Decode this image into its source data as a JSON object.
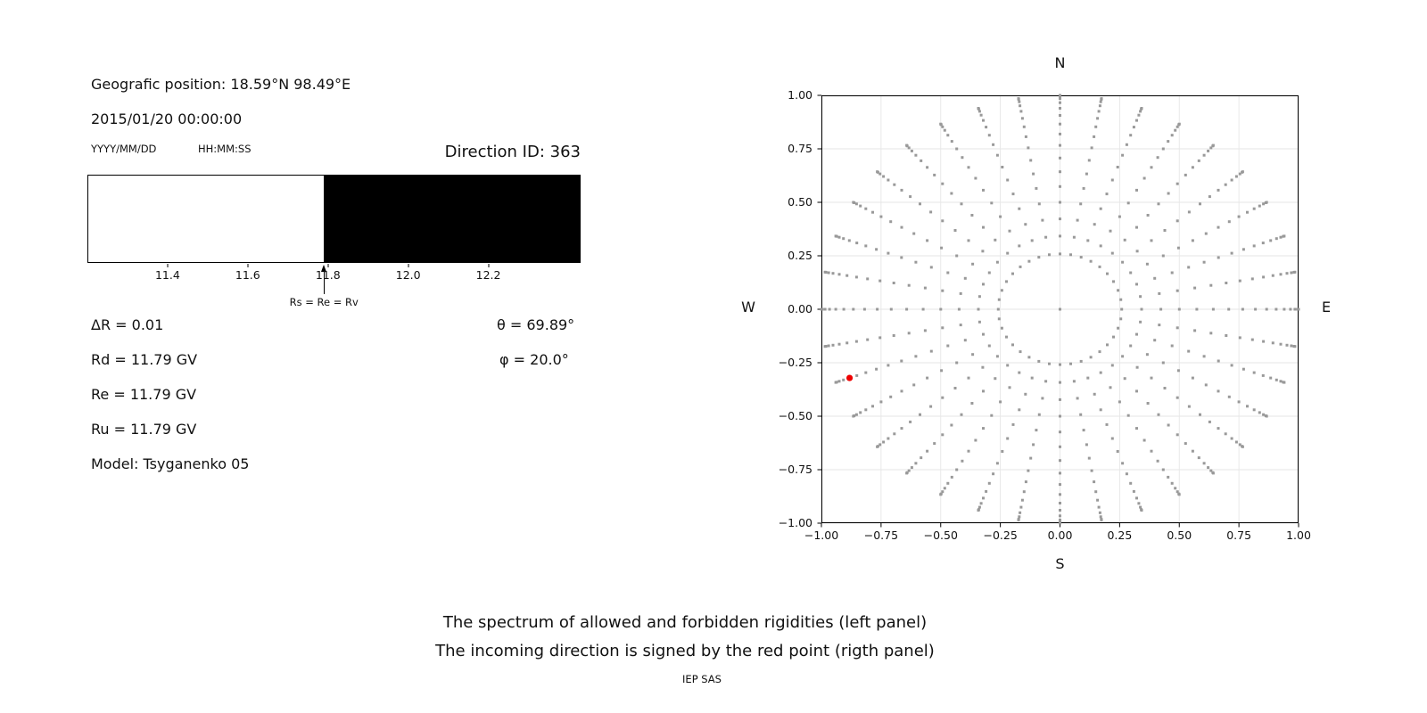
{
  "info_panel": {
    "geographic_position": "Geografic position: 18.59°N 98.49°E",
    "datetime": "2015/01/20 00:00:00",
    "date_format_hint": "YYYY/MM/DD",
    "time_format_hint": "HH:MM:SS",
    "direction_id": "Direction ID: 363",
    "values": {
      "delta_r": "ΔR = 0.01",
      "rd": "Rd = 11.79 GV",
      "re": "Re = 11.79 GV",
      "ru": "Ru = 11.79 GV",
      "model": "Model: Tsyganenko 05",
      "theta": "θ = 69.89°",
      "phi": "φ = 20.0°"
    }
  },
  "captions": {
    "line1": "The spectrum of allowed and forbidden rigidities (left panel)",
    "line2": "The incoming direction is signed by the red point (rigth panel)",
    "credit": "IEP SAS"
  },
  "chart_data": [
    {
      "name": "rigidity-spectrum",
      "type": "area",
      "xlim": [
        11.2,
        12.43
      ],
      "x_ticks": [
        11.4,
        11.6,
        11.8,
        12.0,
        12.2
      ],
      "x_tick_labels": [
        "11.4",
        "11.6",
        "11.8",
        "12.0",
        "12.2"
      ],
      "regions": [
        {
          "label": "allowed",
          "from": 11.2,
          "to": 11.79,
          "color": "#ffffff"
        },
        {
          "label": "forbidden",
          "from": 11.79,
          "to": 12.43,
          "color": "#000000"
        }
      ],
      "arrow": {
        "x": 11.79,
        "label": "Rs = Re = Rv"
      },
      "values": {
        "Rs": 11.79,
        "Re": 11.79,
        "Rv": 11.79,
        "Rd": 11.79,
        "Ru": 11.79,
        "deltaR": 0.01
      }
    },
    {
      "name": "incoming-direction-map",
      "type": "scatter",
      "xlim": [
        -1,
        1
      ],
      "ylim": [
        -1,
        1
      ],
      "x_ticks": [
        -1,
        -0.75,
        -0.5,
        -0.25,
        0,
        0.25,
        0.5,
        0.75,
        1
      ],
      "y_ticks": [
        1,
        0.75,
        0.5,
        0.25,
        0,
        -0.25,
        -0.5,
        -0.75,
        -1
      ],
      "x_tick_labels": [
        "−1.00",
        "−0.75",
        "−0.50",
        "−0.25",
        "0.00",
        "0.25",
        "0.50",
        "0.75",
        "1.00"
      ],
      "y_tick_labels": [
        "1.00",
        "0.75",
        "0.50",
        "0.25",
        "0.00",
        "−0.25",
        "−0.50",
        "−0.75",
        "−1.00"
      ],
      "grid": true,
      "grid_color": "#e6e6e6",
      "compass": {
        "top": "N",
        "bottom": "S",
        "left": "W",
        "right": "E"
      },
      "dot_color": "#999999",
      "dot_size_px": 3,
      "direction_grid": {
        "azimuth_deg": {
          "start": 0,
          "step": 10,
          "count": 36
        },
        "zenith_deg": {
          "start": 15,
          "step": 5,
          "end": 90
        },
        "mapping": "x = -sin(zenith)*cos(azimuth), y = -sin(zenith)*sin(azimuth)",
        "includes_center_point": true
      },
      "red_point": {
        "x": -0.882,
        "y": -0.321,
        "radius_px": 3.6,
        "color": "#ee0000",
        "theta_deg": 69.89,
        "phi_deg": 20.0
      }
    }
  ]
}
